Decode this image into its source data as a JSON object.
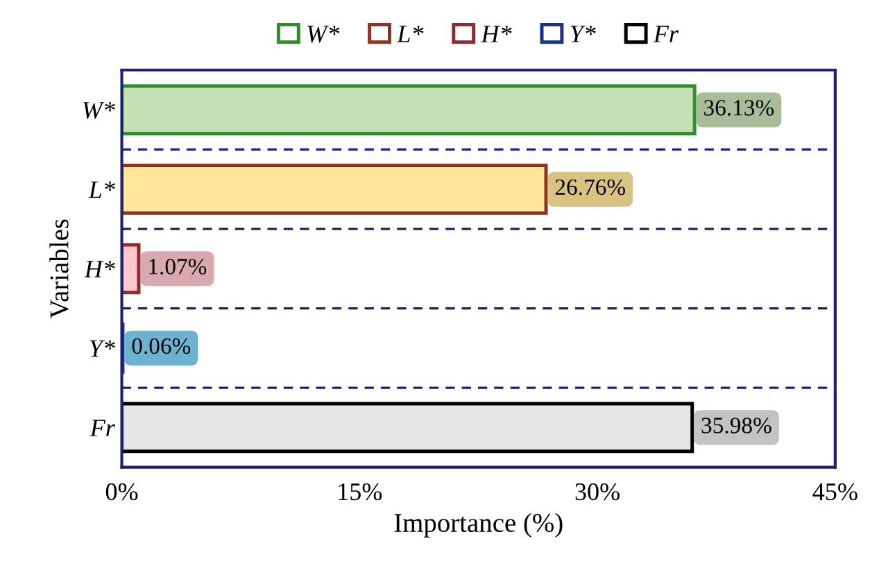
{
  "chart_data": {
    "type": "bar",
    "orientation": "horizontal",
    "categories": [
      "W*",
      "L*",
      "H*",
      "Y*",
      "Fr"
    ],
    "series": [
      {
        "name": "W*",
        "color": "#c5e0b4",
        "values": [
          36.13,
          null,
          null,
          null,
          null
        ],
        "value_labels": [
          "36.13%",
          null,
          null,
          null,
          null
        ]
      },
      {
        "name": "L*",
        "color": "#ffe699",
        "values": [
          null,
          26.76,
          null,
          null,
          null
        ],
        "value_labels": [
          null,
          "26.76%",
          null,
          null,
          null
        ]
      },
      {
        "name": "H*",
        "color": "#ffc7ce",
        "values": [
          null,
          null,
          1.07,
          null,
          null
        ],
        "value_labels": [
          null,
          null,
          "1.07%",
          null,
          null
        ]
      },
      {
        "name": "Y*",
        "color": "#7fd3f7",
        "values": [
          null,
          null,
          null,
          0.06,
          null
        ],
        "value_labels": [
          null,
          null,
          null,
          "0.06%",
          null
        ]
      },
      {
        "name": "Fr",
        "color": "#e7e6e6",
        "values": [
          null,
          null,
          null,
          null,
          35.98
        ],
        "value_labels": [
          null,
          null,
          null,
          null,
          "35.98%"
        ]
      }
    ],
    "xlim": [
      0,
      45
    ],
    "xticks": [
      {
        "value": 0,
        "label": "0%"
      },
      {
        "value": 15,
        "label": "15%"
      },
      {
        "value": 30,
        "label": "30%"
      },
      {
        "value": 45,
        "label": "45%"
      }
    ],
    "xlabel": "Importance (%)",
    "ylabel": "Variables",
    "grid": "y",
    "legend": "top"
  }
}
